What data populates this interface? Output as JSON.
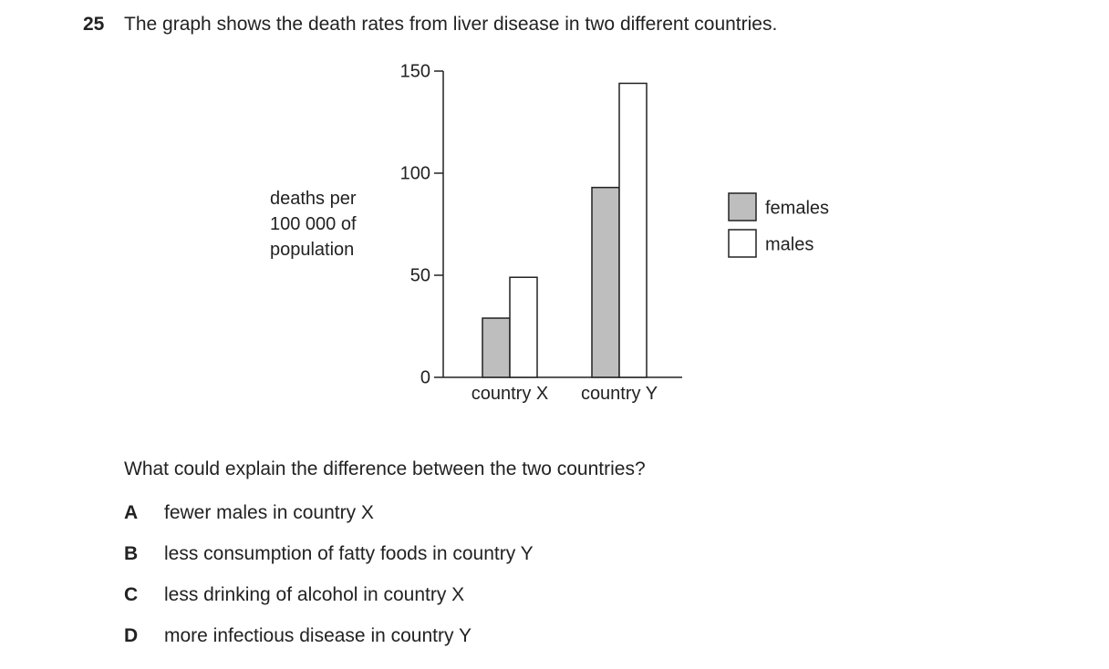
{
  "question": {
    "number": "25",
    "text": "The graph shows the death rates from liver disease in two different countries.",
    "prompt": "What could explain the difference between the two countries?"
  },
  "options": [
    {
      "letter": "A",
      "text": "fewer males in country X"
    },
    {
      "letter": "B",
      "text": "less consumption of fatty foods in country Y"
    },
    {
      "letter": "C",
      "text": "less drinking of alcohol in country X"
    },
    {
      "letter": "D",
      "text": "more infectious disease in country Y"
    }
  ],
  "chart_data": {
    "type": "bar",
    "ylabel": "deaths per 100 000 of population",
    "categories": [
      "country X",
      "country Y"
    ],
    "series": [
      {
        "name": "females",
        "color": "#bebebe",
        "values": [
          29,
          93
        ]
      },
      {
        "name": "males",
        "color": "#ffffff",
        "values": [
          49,
          144
        ]
      }
    ],
    "ylim": [
      0,
      150
    ],
    "yticks": [
      0,
      50,
      100,
      150
    ]
  }
}
